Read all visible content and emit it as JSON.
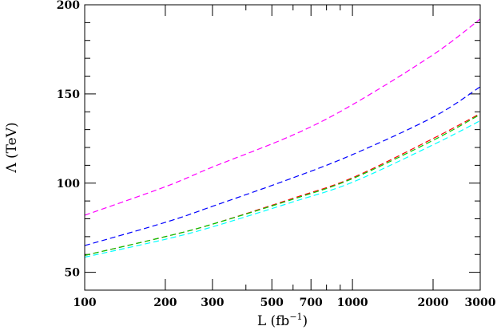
{
  "chart_data": {
    "type": "line",
    "xlabel": "L (fb",
    "xlabel_superscript": "−1",
    "xlabel_close": ")",
    "ylabel": "Λ (TeV)",
    "xscale": "log",
    "xlim": [
      100,
      3000
    ],
    "ylim": [
      40,
      200
    ],
    "x_ticks": [
      100,
      200,
      300,
      500,
      700,
      1000,
      2000,
      3000
    ],
    "x_tick_labels": [
      "100",
      "200",
      "300",
      "500",
      "700",
      "1000",
      "2000",
      "3000"
    ],
    "y_ticks": [
      50,
      100,
      150,
      200
    ],
    "y_tick_labels": [
      "50",
      "100",
      "150",
      "200"
    ],
    "grid": false,
    "line_style": "dashed",
    "x": [
      100,
      200,
      300,
      600,
      1000,
      2000,
      3000
    ],
    "series": [
      {
        "color": "#ff00ff",
        "values": [
          82,
          98,
          109,
          127,
          144,
          172,
          192
        ]
      },
      {
        "color": "#0000ff",
        "values": [
          65,
          78,
          87,
          103,
          116,
          137,
          154
        ]
      },
      {
        "color": "#ff0000",
        "values": [
          59.5,
          70,
          77,
          91.5,
          103,
          125,
          139
        ]
      },
      {
        "color": "#00cc00",
        "values": [
          59.5,
          70,
          77,
          91,
          102.5,
          124,
          138.5
        ]
      },
      {
        "color": "#00ffff",
        "values": [
          58.5,
          68.5,
          75.5,
          89.5,
          100.5,
          121.5,
          135
        ]
      }
    ]
  }
}
